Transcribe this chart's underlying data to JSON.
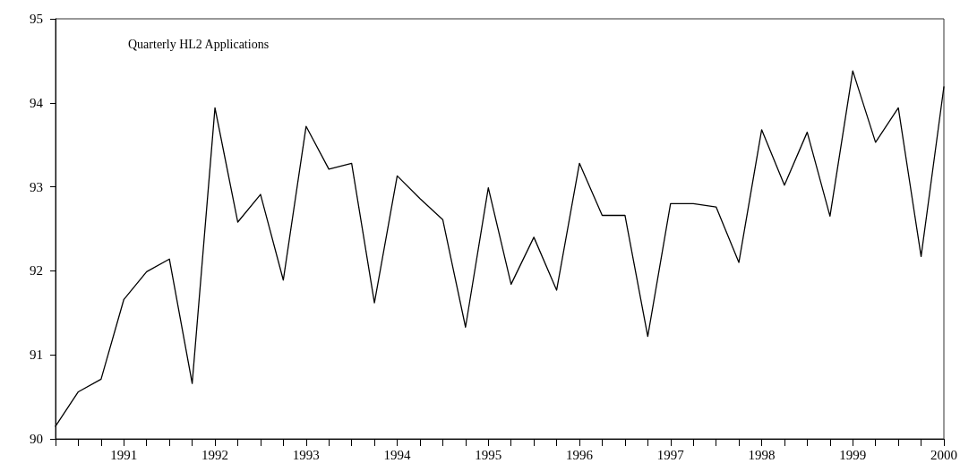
{
  "chart_data": {
    "type": "line",
    "title": "Quarterly HL2 Applications",
    "categories": [
      null,
      null,
      null,
      "1991",
      null,
      null,
      null,
      "1992",
      null,
      null,
      null,
      "1993",
      null,
      null,
      null,
      "1994",
      null,
      null,
      null,
      "1995",
      null,
      null,
      null,
      "1996",
      null,
      null,
      null,
      "1997",
      null,
      null,
      null,
      "1998",
      null,
      null,
      null,
      "1999",
      null,
      null,
      null,
      "2000"
    ],
    "series": [
      {
        "color": "#000000",
        "values": [
          90.15,
          90.56,
          90.71,
          91.66,
          91.99,
          92.14,
          90.66,
          93.94,
          92.58,
          92.91,
          91.89,
          93.72,
          93.21,
          93.28,
          91.62,
          93.13,
          92.86,
          92.61,
          91.33,
          92.99,
          91.84,
          92.4,
          91.77,
          93.28,
          92.66,
          92.66,
          91.22,
          92.8,
          92.8,
          92.76,
          92.1,
          93.68,
          93.02,
          93.65,
          92.65,
          94.38,
          93.53,
          93.94,
          92.17,
          94.19
        ]
      }
    ],
    "ylim": [
      90,
      95
    ],
    "yticks": [
      90,
      91,
      92,
      93,
      94,
      95
    ],
    "grid": false,
    "marker": "none",
    "line_style": "solid"
  }
}
